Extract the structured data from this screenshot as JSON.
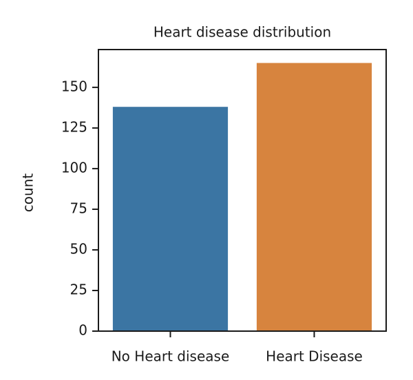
{
  "chart_data": {
    "type": "bar",
    "title": "Heart disease distribution",
    "y_label": "count",
    "categories": [
      "No Heart disease",
      "Heart Disease"
    ],
    "values": [
      138,
      165
    ],
    "colors": [
      "#3b75a3",
      "#d7843e"
    ],
    "ylim": [
      0,
      173.25
    ],
    "yticks": [
      0,
      25,
      50,
      75,
      100,
      125,
      150
    ],
    "grid": false
  }
}
